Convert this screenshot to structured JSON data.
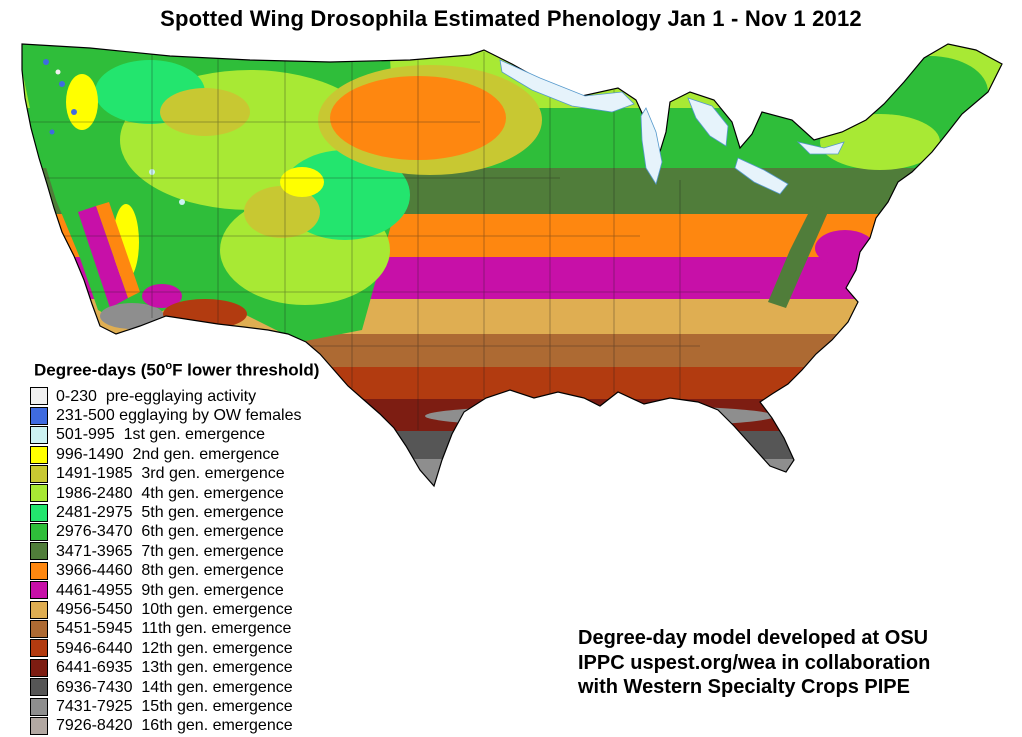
{
  "title": "Spotted Wing Drosophila Estimated Phenology Jan 1 - Nov 1 2012",
  "legend": {
    "heading": {
      "prefix": "Degree-days (50",
      "degree": "o",
      "suffix": "F lower threshold)"
    },
    "items": [
      {
        "text": "0-230  pre-egglaying activity",
        "color": "#f0f0f0"
      },
      {
        "text": "231-500 egglaying by OW females",
        "color": "#3f6be0"
      },
      {
        "text": "501-995  1st gen. emergence",
        "color": "#ccf2f2"
      },
      {
        "text": "996-1490  2nd gen. emergence",
        "color": "#ffff00"
      },
      {
        "text": "1491-1985  3rd gen. emergence",
        "color": "#c8c832"
      },
      {
        "text": "1986-2480  4th gen. emergence",
        "color": "#a8e934"
      },
      {
        "text": "2481-2975  5th gen. emergence",
        "color": "#23e56e"
      },
      {
        "text": "2976-3470  6th gen. emergence",
        "color": "#2fbe3a"
      },
      {
        "text": "3471-3965  7th gen. emergence",
        "color": "#507d3a"
      },
      {
        "text": "3966-4460  8th gen. emergence",
        "color": "#fe8710"
      },
      {
        "text": "4461-4955  9th gen. emergence",
        "color": "#c710a8"
      },
      {
        "text": "4956-5450  10th gen. emergence",
        "color": "#dfae52"
      },
      {
        "text": "5451-5945  11th gen. emergence",
        "color": "#ad6a33"
      },
      {
        "text": "5946-6440  12th gen. emergence",
        "color": "#b23b10"
      },
      {
        "text": "6441-6935  13th gen. emergence",
        "color": "#7d1d12"
      },
      {
        "text": "6936-7430  14th gen. emergence",
        "color": "#565656"
      },
      {
        "text": "7431-7925  15th gen. emergence",
        "color": "#8e8e8e"
      },
      {
        "text": "7926-8420  16th gen. emergence",
        "color": "#b2a8a2"
      }
    ]
  },
  "credit": {
    "line1": "Degree-day model developed at OSU",
    "line2": "IPPC uspest.org/wea in collaboration",
    "line3": "with Western Specialty Crops PIPE"
  },
  "map": {
    "lake_fill": "#e6f3fb",
    "lake_stroke": "#5599cc",
    "outline_color": "#000000",
    "state_line_color": "#1a1a1a"
  }
}
